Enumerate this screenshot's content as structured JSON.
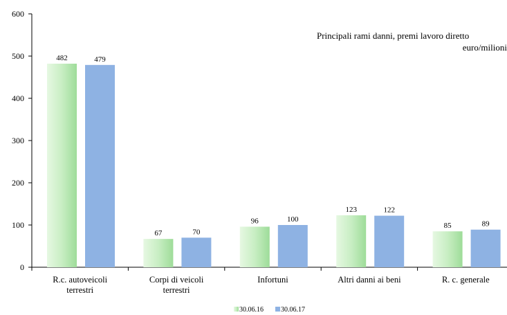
{
  "chart_data": {
    "type": "bar",
    "title": "Principali rami danni, premi lavoro diretto",
    "subtitle": "euro/milioni",
    "categories": [
      [
        "R.c. autoveicoli",
        "terrestri"
      ],
      [
        "Corpi di veicoli",
        "terrestri"
      ],
      [
        "Infortuni"
      ],
      [
        "Altri danni ai beni"
      ],
      [
        "R. c. generale"
      ]
    ],
    "series": [
      {
        "name": "30.06.16",
        "values": [
          482,
          67,
          96,
          123,
          85
        ],
        "color": "#c6ecc2"
      },
      {
        "name": "30.06.17",
        "values": [
          479,
          70,
          100,
          122,
          89
        ],
        "color": "#8eb2e3"
      }
    ],
    "ylim": [
      0,
      600
    ],
    "yticks": [
      0,
      100,
      200,
      300,
      400,
      500,
      600
    ],
    "grid": false,
    "legend": "bottom-center",
    "xlabel": "",
    "ylabel": ""
  }
}
